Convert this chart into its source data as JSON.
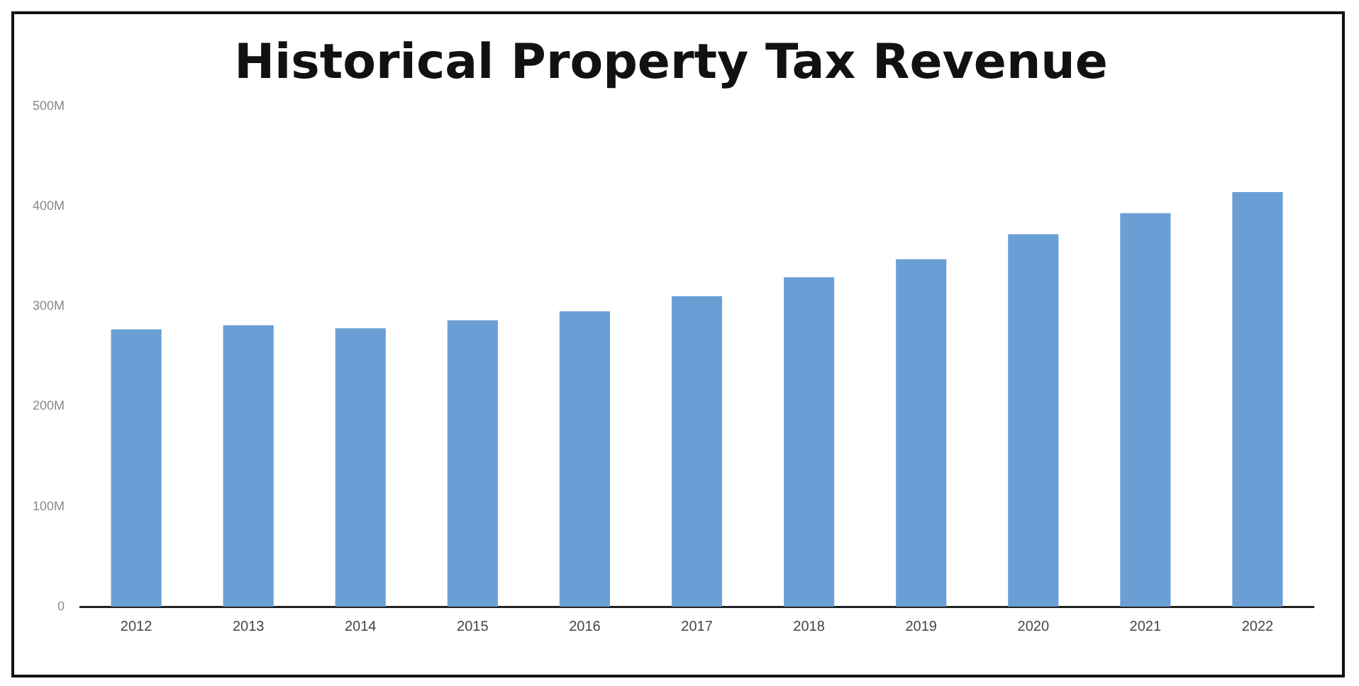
{
  "chart_data": {
    "type": "bar",
    "title": "Historical Property Tax Revenue",
    "categories": [
      "2012",
      "2013",
      "2014",
      "2015",
      "2016",
      "2017",
      "2018",
      "2019",
      "2020",
      "2021",
      "2022"
    ],
    "values": [
      277,
      281,
      278,
      286,
      295,
      310,
      329,
      347,
      372,
      393,
      414
    ],
    "color": "#6a9fd6",
    "ylim": [
      0,
      500
    ],
    "yticks": [
      {
        "value": 0,
        "label": "0"
      },
      {
        "value": 100,
        "label": "100M"
      },
      {
        "value": 200,
        "label": "200M"
      },
      {
        "value": 300,
        "label": "300M"
      },
      {
        "value": 400,
        "label": "400M"
      },
      {
        "value": 500,
        "label": "500M"
      }
    ],
    "grid": false
  }
}
